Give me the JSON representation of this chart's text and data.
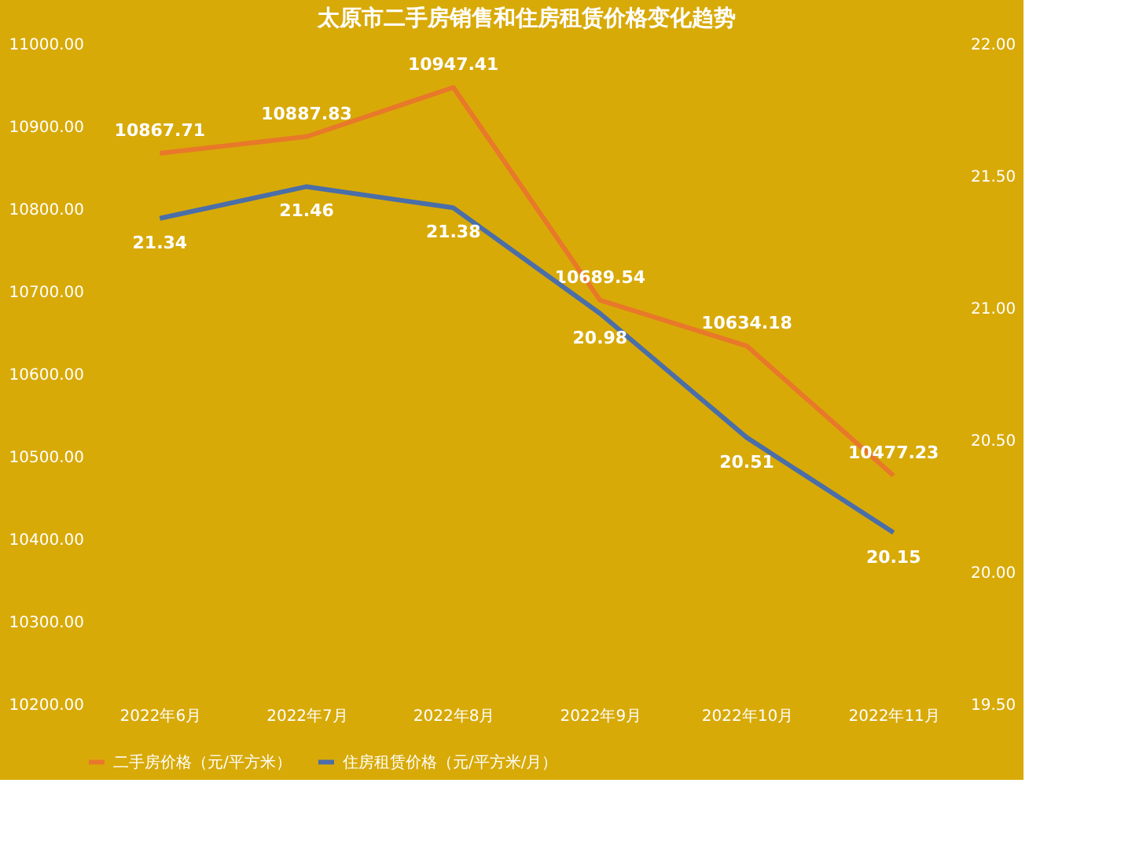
{
  "chart_data": {
    "type": "line",
    "title": "太原市二手房销售和住房租赁价格变化趋势",
    "categories": [
      "2022年6月",
      "2022年7月",
      "2022年8月",
      "2022年9月",
      "2022年10月",
      "2022年11月"
    ],
    "series": [
      {
        "name": "二手房价格（元/平方米）",
        "color": "#e8782a",
        "values": [
          10867.71,
          10887.83,
          10947.41,
          10689.54,
          10634.18,
          10477.23
        ]
      },
      {
        "name": "住房租赁价格（元/平方米/月）",
        "color": "#4a6ea8",
        "axis": "y2",
        "values": [
          21.34,
          21.46,
          21.38,
          20.98,
          20.51,
          20.15
        ]
      }
    ],
    "ylim": [
      10200,
      11000
    ],
    "yticks": [
      {
        "value": 10200,
        "label": "10200.00"
      },
      {
        "value": 10300,
        "label": "10300.00"
      },
      {
        "value": 10400,
        "label": "10400.00"
      },
      {
        "value": 10500,
        "label": "10500.00"
      },
      {
        "value": 10600,
        "label": "10600.00"
      },
      {
        "value": 10700,
        "label": "10700.00"
      },
      {
        "value": 10800,
        "label": "10800.00"
      },
      {
        "value": 10900,
        "label": "10900.00"
      },
      {
        "value": 11000,
        "label": "11000.00"
      }
    ],
    "y2lim": [
      19.5,
      22
    ],
    "y2ticks": [
      {
        "value": 19.5,
        "label": "19.50"
      },
      {
        "value": 20,
        "label": "20.00"
      },
      {
        "value": 20.5,
        "label": "20.50"
      },
      {
        "value": 21,
        "label": "21.00"
      },
      {
        "value": 21.5,
        "label": "21.50"
      },
      {
        "value": 22,
        "label": "22.00"
      }
    ],
    "data_labels": true,
    "legend": "bottom",
    "grid": false,
    "marker": "none",
    "line_style": "solid"
  }
}
